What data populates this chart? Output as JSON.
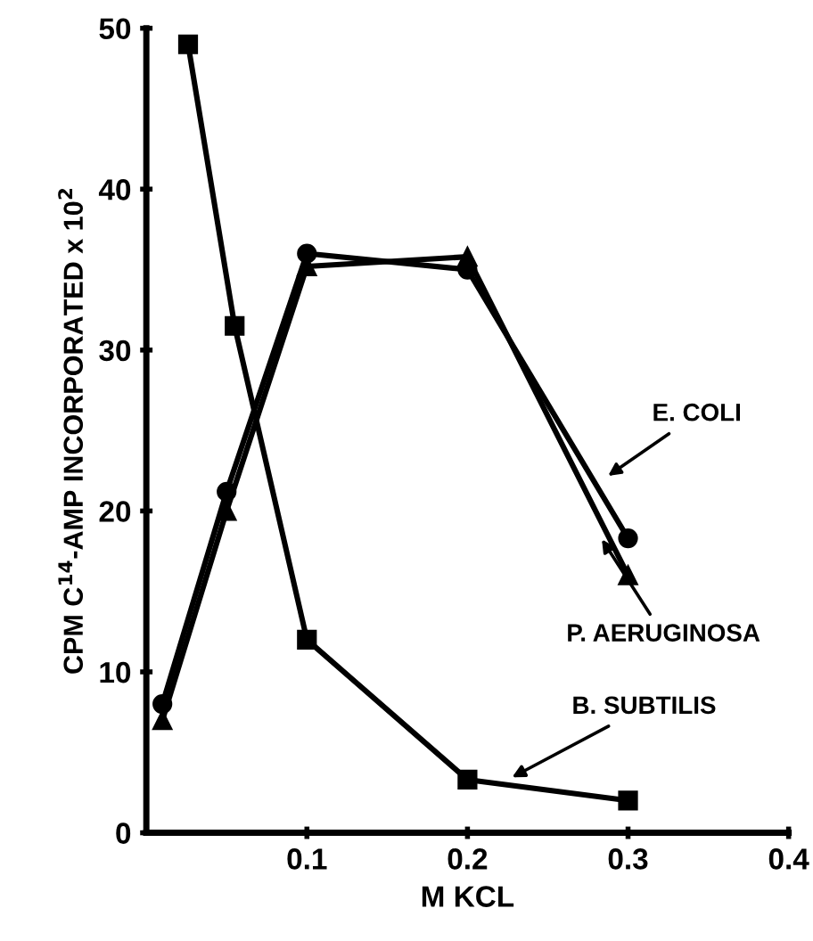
{
  "chart_data": {
    "type": "line",
    "xlabel": "M KCL",
    "ylabel": "CPM C$^{14}$-AMP INCORPORATED x 10$^{2}$",
    "xlim": [
      0,
      0.4
    ],
    "ylim": [
      0,
      50
    ],
    "xticks": [
      0.1,
      0.2,
      0.3,
      0.4
    ],
    "yticks": [
      0,
      10,
      20,
      30,
      40,
      50
    ],
    "grid": false,
    "line_style": "solid",
    "series": [
      {
        "color": "#000000",
        "marker": "circle",
        "x": [
          0.01,
          0.05,
          0.1,
          0.2,
          0.3
        ],
        "values": [
          8,
          21.2,
          36,
          35,
          18.3
        ]
      },
      {
        "color": "#000000",
        "marker": "triangle",
        "x": [
          0.01,
          0.05,
          0.1,
          0.2,
          0.3
        ],
        "values": [
          7,
          20,
          35.2,
          35.8,
          16
        ]
      },
      {
        "color": "#000000",
        "marker": "square",
        "x": [
          0.026,
          0.055,
          0.1,
          0.2,
          0.3
        ],
        "values": [
          49,
          31.5,
          12,
          3.3,
          2
        ]
      }
    ],
    "annotations": [
      {
        "text": "E. COLI",
        "x": 0.285,
        "y": 22
      },
      {
        "text": "P. AERUGINOSA",
        "x": 0.282,
        "y": 18.5
      },
      {
        "text": "B. SUBTILIS",
        "x": 0.225,
        "y": 3.3
      }
    ]
  }
}
